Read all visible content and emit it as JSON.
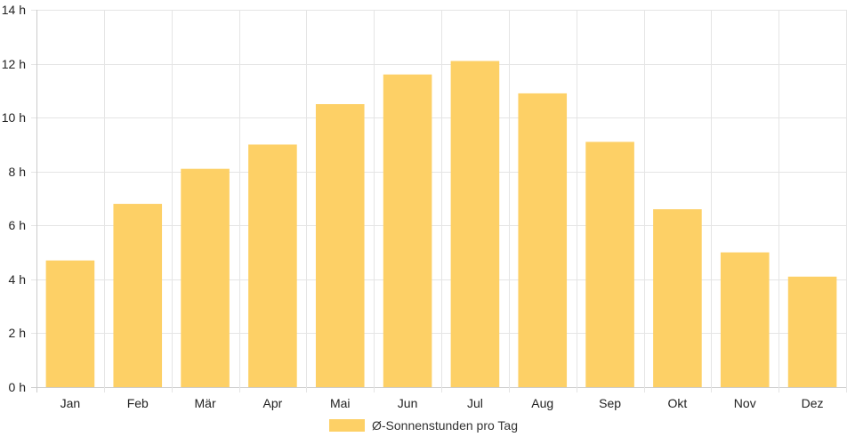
{
  "chart_data": {
    "type": "bar",
    "categories": [
      "Jan",
      "Feb",
      "Mär",
      "Apr",
      "Mai",
      "Jun",
      "Jul",
      "Aug",
      "Sep",
      "Okt",
      "Nov",
      "Dez"
    ],
    "series": [
      {
        "name": "Ø-Sonnenstunden pro Tag",
        "values": [
          4.7,
          6.8,
          8.1,
          9.0,
          10.5,
          11.6,
          12.1,
          10.9,
          9.1,
          6.6,
          5.0,
          4.1
        ]
      }
    ],
    "ylim": [
      0,
      14
    ],
    "yticks": [
      0,
      2,
      4,
      6,
      8,
      10,
      12,
      14
    ],
    "y_tick_suffix": " h",
    "grid": true,
    "legend_position": "bottom",
    "colors": {
      "bar": "#fdd066",
      "grid": "#e5e5e5",
      "axis": "#cccccc"
    }
  }
}
